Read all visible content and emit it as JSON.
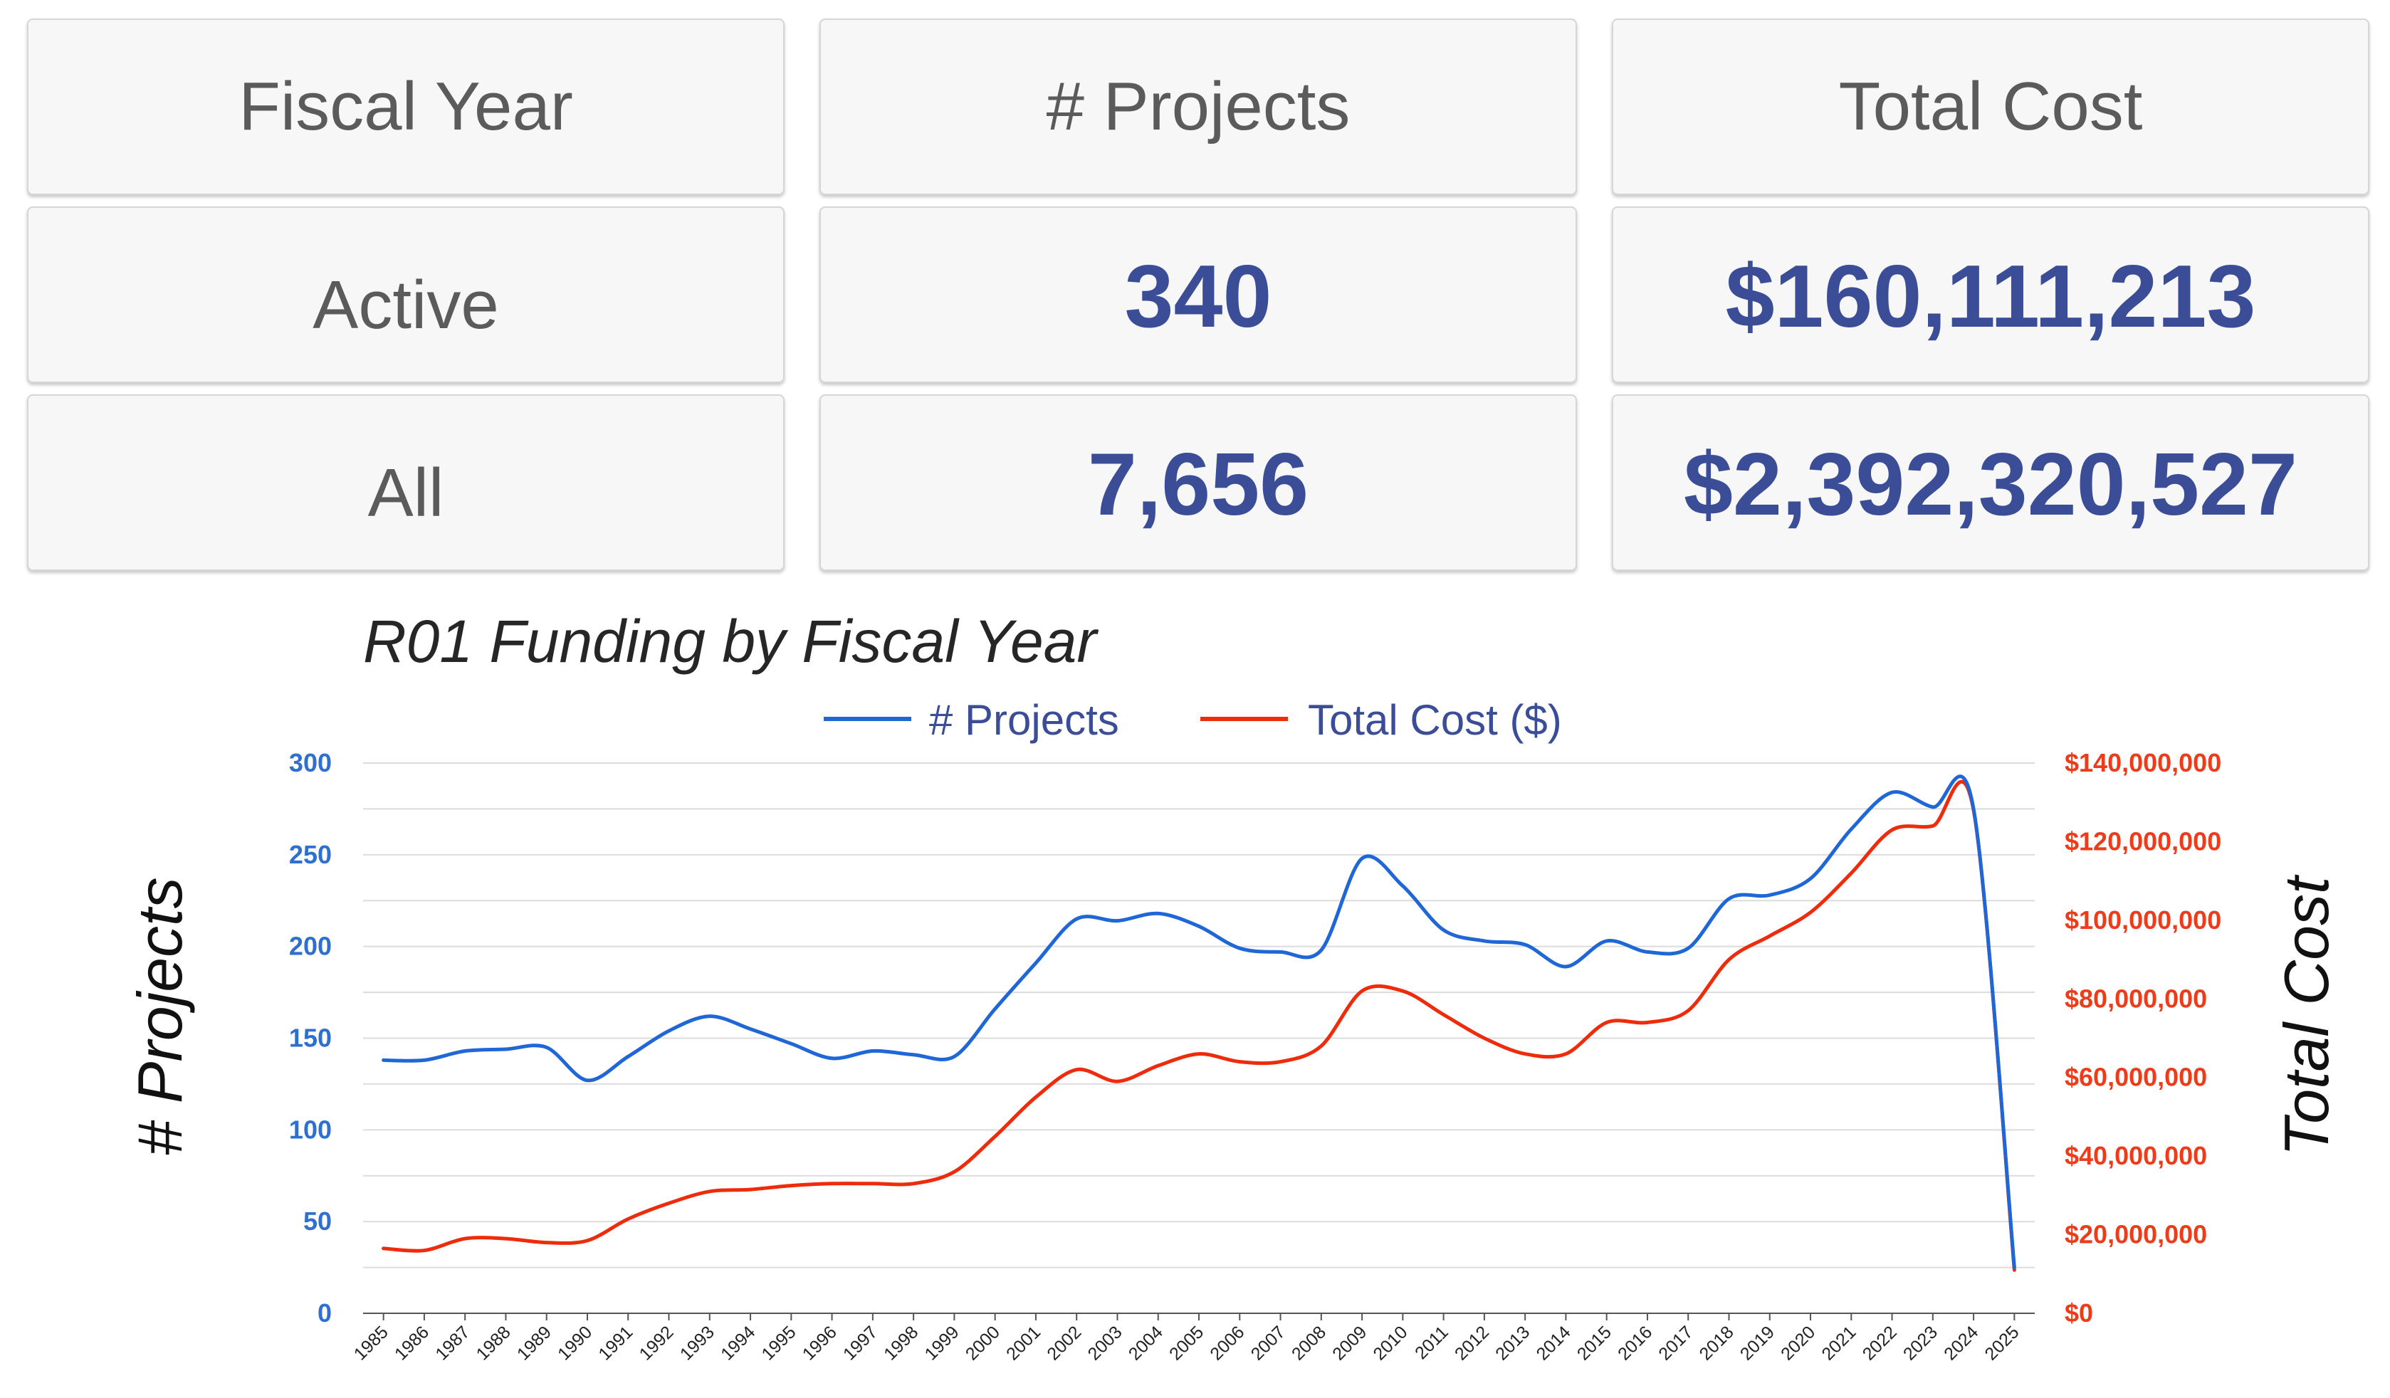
{
  "summary": {
    "headers": {
      "fiscal_year": "Fiscal Year",
      "projects": "# Projects",
      "total_cost": "Total Cost"
    },
    "rows": [
      {
        "label": "Active",
        "projects": "340",
        "total_cost": "$160,111,213"
      },
      {
        "label": "All",
        "projects": "7,656",
        "total_cost": "$2,392,320,527"
      }
    ]
  },
  "colors": {
    "projects_line": "#1f66d6",
    "cost_line": "#ee2c0c",
    "value_text": "#3a4d96",
    "grid": "#dcdcdc"
  },
  "chart_data": {
    "type": "line",
    "title": "R01 Funding by Fiscal Year",
    "ylabel_left": "# Projects",
    "ylabel_right": "Total Cost",
    "categories": [
      "1985",
      "1986",
      "1987",
      "1988",
      "1989",
      "1990",
      "1991",
      "1992",
      "1993",
      "1994",
      "1995",
      "1996",
      "1997",
      "1998",
      "1999",
      "2000",
      "2001",
      "2002",
      "2003",
      "2004",
      "2005",
      "2006",
      "2007",
      "2008",
      "2009",
      "2010",
      "2011",
      "2012",
      "2013",
      "2014",
      "2015",
      "2016",
      "2017",
      "2018",
      "2019",
      "2020",
      "2021",
      "2022",
      "2023",
      "2024",
      "2025"
    ],
    "y_left": {
      "min": 0,
      "max": 300,
      "ticks": [
        0,
        50,
        100,
        150,
        200,
        250,
        300
      ],
      "tick_labels": [
        "0",
        "50",
        "100",
        "150",
        "200",
        "250",
        "300"
      ]
    },
    "y_right": {
      "min": 0,
      "max": 140000000,
      "ticks": [
        0,
        20000000,
        40000000,
        60000000,
        80000000,
        100000000,
        120000000,
        140000000
      ],
      "tick_labels": [
        "$0",
        "$20,000,000",
        "$40,000,000",
        "$60,000,000",
        "$80,000,000",
        "$100,000,000",
        "$120,000,000",
        "$140,000,000"
      ]
    },
    "legend_position": "top",
    "grid": true,
    "series": [
      {
        "name": "# Projects",
        "axis": "left",
        "values": [
          138,
          138,
          143,
          144,
          145,
          127,
          140,
          154,
          162,
          155,
          147,
          139,
          143,
          141,
          140,
          166,
          191,
          215,
          214,
          218,
          211,
          199,
          197,
          198,
          248,
          233,
          209,
          203,
          201,
          189,
          203,
          197,
          199,
          226,
          228,
          237,
          264,
          284,
          276,
          275,
          25
        ]
      },
      {
        "name": "Total Cost ($)",
        "axis": "right",
        "values": [
          16500000,
          16000000,
          19000000,
          19000000,
          18000000,
          18500000,
          24000000,
          28000000,
          31000000,
          31500000,
          32500000,
          33000000,
          33000000,
          33000000,
          36000000,
          45000000,
          55000000,
          62000000,
          59000000,
          63000000,
          66000000,
          64000000,
          64000000,
          68000000,
          82000000,
          82000000,
          76000000,
          70000000,
          66000000,
          66000000,
          74000000,
          74000000,
          77000000,
          90000000,
          96000000,
          102000000,
          112000000,
          123000000,
          124000000,
          128000000,
          11000000
        ]
      }
    ]
  }
}
